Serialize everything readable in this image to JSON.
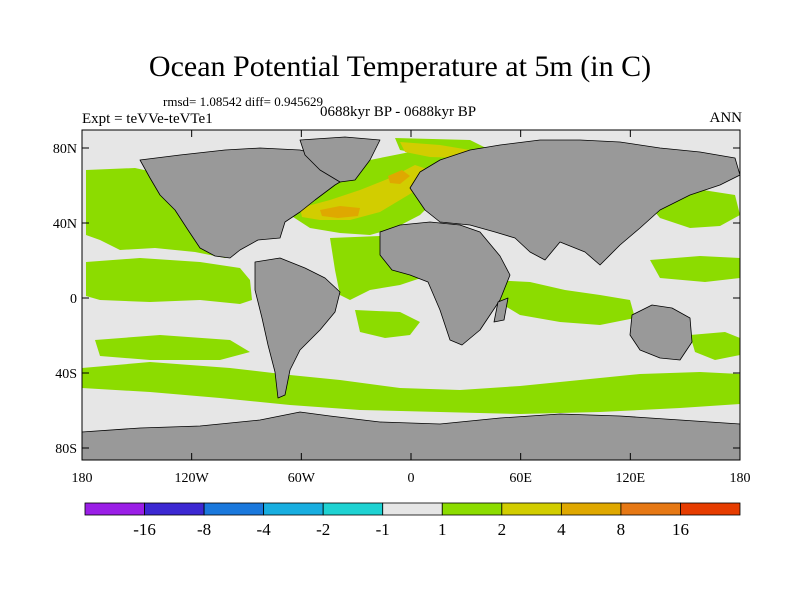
{
  "title": "Ocean Potential Temperature at 5m (in C)",
  "stats_line": "rmsd= 1.08542 diff= 0.945629",
  "experiment": "Expt = teVVe-teVTe1",
  "period": "0688kyr BP - 0688kyr BP",
  "season": "ANN",
  "lat_ticks": [
    {
      "label": "80N",
      "lat": 80
    },
    {
      "label": "40N",
      "lat": 40
    },
    {
      "label": "0",
      "lat": 0
    },
    {
      "label": "40S",
      "lat": -40
    },
    {
      "label": "80S",
      "lat": -80
    }
  ],
  "lon_ticks": [
    {
      "label": "180",
      "lon": -180
    },
    {
      "label": "120W",
      "lon": -120
    },
    {
      "label": "60W",
      "lon": -60
    },
    {
      "label": "0",
      "lon": 0
    },
    {
      "label": "60E",
      "lon": 60
    },
    {
      "label": "120E",
      "lon": 120
    },
    {
      "label": "180",
      "lon": 180
    }
  ],
  "colorbar": {
    "colors": [
      "#9a1ee6",
      "#3c28d2",
      "#1a78dc",
      "#18aee0",
      "#1ed2d2",
      "#e6e6e6",
      "#8cdc00",
      "#d2cd00",
      "#dfa800",
      "#e67814",
      "#e63c00"
    ],
    "labels": [
      "-16",
      "-8",
      "-4",
      "-2",
      "-1",
      "1",
      "2",
      "4",
      "8",
      "16"
    ]
  },
  "colors": {
    "land": "#999999",
    "ocean_background": "#e6e6e6"
  }
}
